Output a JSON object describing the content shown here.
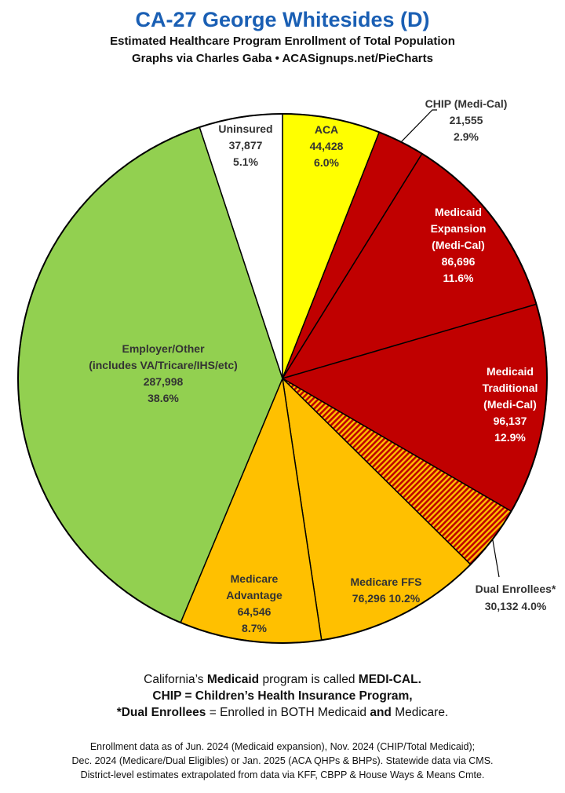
{
  "header": {
    "title": "CA-27 George Whitesides (D)",
    "subtitle_line1": "Estimated Healthcare Program Enrollment of Total Population",
    "subtitle_line2": "Graphs via Charles Gaba  •  ACASignups.net/PieCharts"
  },
  "chart_data": {
    "type": "pie",
    "title": "CA-27 George Whitesides (D)",
    "subtitle": "Estimated Healthcare Program Enrollment of Total Population",
    "start": "12 o'clock, clockwise",
    "slices": [
      {
        "label": "ACA",
        "value": 44428,
        "percent": "6.0%",
        "value_text": "44,428",
        "color": "#ffff00",
        "label_lines": [
          "ACA",
          "44,428",
          "6.0%"
        ]
      },
      {
        "label": "CHIP (Medi-Cal)",
        "value": 21555,
        "percent": "2.9%",
        "value_text": "21,555",
        "color": "#c00000",
        "label_lines": [
          "CHIP (Medi-Cal)",
          "21,555",
          "2.9%"
        ]
      },
      {
        "label": "Medicaid Expansion (Medi-Cal)",
        "value": 86696,
        "percent": "11.6%",
        "value_text": "86,696",
        "color": "#c00000",
        "label_lines": [
          "Medicaid",
          "Expansion",
          "(Medi-Cal)",
          "86,696",
          "11.6%"
        ]
      },
      {
        "label": "Medicaid Traditional (Medi-Cal)",
        "value": 96137,
        "percent": "12.9%",
        "value_text": "96,137",
        "color": "#c00000",
        "label_lines": [
          "Medicaid",
          "Traditional",
          "(Medi-Cal)",
          "96,137",
          "12.9%"
        ]
      },
      {
        "label": "Dual Enrollees*",
        "value": 30132,
        "percent": "4.0%",
        "value_text": "30,132",
        "color": "#c00000",
        "pattern": "hatch",
        "label_lines": [
          "Dual Enrollees*",
          "30,132 4.0%"
        ]
      },
      {
        "label": "Medicare FFS",
        "value": 76296,
        "percent": "10.2%",
        "value_text": "76,296",
        "color": "#ffc000",
        "label_lines": [
          "Medicare FFS",
          "76,296 10.2%"
        ]
      },
      {
        "label": "Medicare Advantage",
        "value": 64546,
        "percent": "8.7%",
        "value_text": "64,546",
        "color": "#ffc000",
        "label_lines": [
          "Medicare",
          "Advantage",
          "64,546",
          "8.7%"
        ]
      },
      {
        "label": "Employer/Other (includes VA/Tricare/IHS/etc)",
        "value": 287998,
        "percent": "38.6%",
        "value_text": "287,998",
        "color": "#92d050",
        "label_lines": [
          "Employer/Other",
          "(includes VA/Tricare/IHS/etc)",
          "287,998",
          "38.6%"
        ]
      },
      {
        "label": "Uninsured",
        "value": 37877,
        "percent": "5.1%",
        "value_text": "37,877",
        "color": "#ffffff",
        "label_lines": [
          "Uninsured",
          "37,877",
          "5.1%"
        ]
      }
    ]
  },
  "footnotes": {
    "line1_pre": "California’s ",
    "line1_b1": "Medicaid",
    "line1_mid": " program is called ",
    "line1_b2": "MEDI-CAL.",
    "line2": "CHIP = Children’s Health Insurance Program,",
    "line3_b1": "*Dual Enrollees",
    "line3_mid": " = Enrolled in BOTH Medicaid ",
    "line3_b2": "and",
    "line3_post": " Medicare."
  },
  "sources": {
    "line1": "Enrollment data as of Jun. 2024 (Medicaid expansion), Nov. 2024 (CHIP/Total Medicaid);",
    "line2": "Dec. 2024 (Medicare/Dual Eligibles) or Jan. 2025 (ACA QHPs & BHPs). Statewide data via CMS.",
    "line3": "District-level estimates extrapolated from data via KFF, CBPP & House Ways & Means Cmte."
  }
}
